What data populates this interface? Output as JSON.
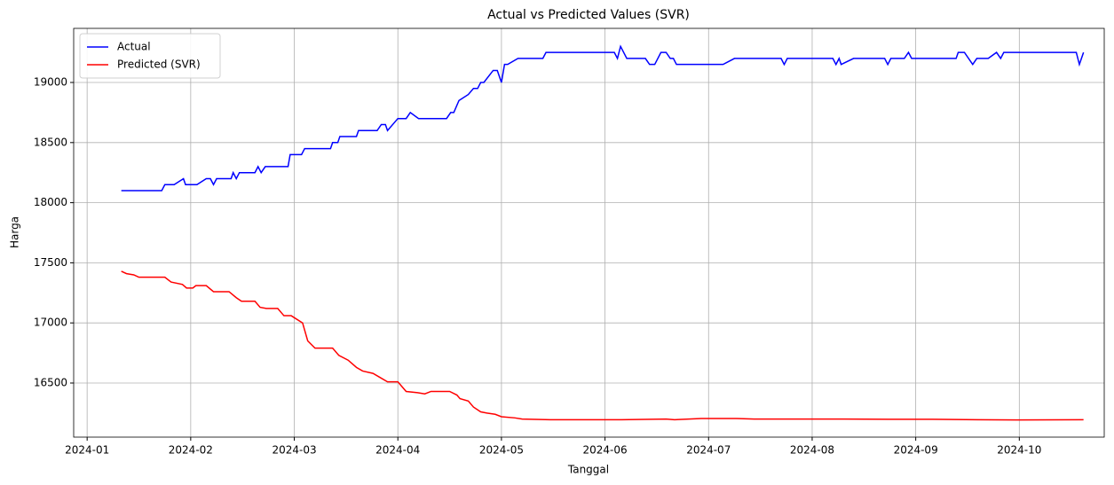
{
  "chart_data": {
    "type": "line",
    "title": "Actual vs Predicted Values (SVR)",
    "xlabel": "Tanggal",
    "ylabel": "Harga",
    "xlim": [
      -0.13,
      9.82
    ],
    "xticks": [
      {
        "value": 0,
        "label": "2024-01"
      },
      {
        "value": 1,
        "label": "2024-02"
      },
      {
        "value": 2,
        "label": "2024-03"
      },
      {
        "value": 3,
        "label": "2024-04"
      },
      {
        "value": 4,
        "label": "2024-05"
      },
      {
        "value": 5,
        "label": "2024-06"
      },
      {
        "value": 6,
        "label": "2024-07"
      },
      {
        "value": 7,
        "label": "2024-08"
      },
      {
        "value": 8,
        "label": "2024-09"
      },
      {
        "value": 9,
        "label": "2024-10"
      }
    ],
    "ylim": [
      16050,
      19450
    ],
    "yticks": [
      16500,
      17000,
      17500,
      18000,
      18500,
      19000
    ],
    "grid": true,
    "legend": "upper left",
    "series": [
      {
        "name": "Actual",
        "color": "#0000ff",
        "x": [
          0.33,
          0.72,
          0.75,
          0.84,
          0.93,
          0.95,
          1.06,
          1.15,
          1.19,
          1.22,
          1.25,
          1.39,
          1.41,
          1.44,
          1.47,
          1.62,
          1.65,
          1.68,
          1.72,
          1.94,
          1.96,
          2.07,
          2.1,
          2.35,
          2.37,
          2.42,
          2.44,
          2.6,
          2.62,
          2.8,
          2.84,
          2.88,
          2.9,
          3.0,
          3.08,
          3.12,
          3.2,
          3.47,
          3.51,
          3.54,
          3.59,
          3.68,
          3.73,
          3.77,
          3.8,
          3.83,
          3.92,
          3.96,
          4.0,
          4.03,
          4.06,
          4.16,
          4.4,
          4.43,
          5.09,
          5.12,
          5.15,
          5.21,
          5.39,
          5.43,
          5.48,
          5.54,
          5.59,
          5.63,
          5.66,
          5.69,
          6.14,
          6.25,
          6.7,
          6.73,
          6.76,
          7.2,
          7.23,
          7.26,
          7.28,
          7.4,
          7.7,
          7.73,
          7.76,
          7.89,
          7.93,
          7.96,
          8.39,
          8.41,
          8.47,
          8.55,
          8.59,
          8.7,
          8.78,
          8.82,
          8.85,
          9.55,
          9.58,
          9.62
        ],
        "values": [
          18100,
          18100,
          18150,
          18150,
          18200,
          18150,
          18150,
          18200,
          18200,
          18150,
          18200,
          18200,
          18250,
          18200,
          18250,
          18250,
          18300,
          18250,
          18300,
          18300,
          18400,
          18400,
          18450,
          18450,
          18500,
          18500,
          18550,
          18550,
          18600,
          18600,
          18650,
          18650,
          18600,
          18700,
          18700,
          18750,
          18700,
          18700,
          18750,
          18750,
          18850,
          18900,
          18950,
          18950,
          19000,
          19000,
          19100,
          19100,
          19000,
          19150,
          19150,
          19200,
          19200,
          19250,
          19250,
          19200,
          19300,
          19200,
          19200,
          19150,
          19150,
          19250,
          19250,
          19200,
          19200,
          19150,
          19150,
          19200,
          19200,
          19150,
          19200,
          19200,
          19150,
          19200,
          19150,
          19200,
          19200,
          19150,
          19200,
          19200,
          19250,
          19200,
          19200,
          19250,
          19250,
          19150,
          19200,
          19200,
          19250,
          19200,
          19250,
          19250,
          19150,
          19250
        ]
      },
      {
        "name": "Predicted (SVR)",
        "color": "#ff0000",
        "x": [
          0.33,
          0.38,
          0.45,
          0.5,
          0.75,
          0.81,
          0.92,
          0.96,
          1.02,
          1.05,
          1.15,
          1.22,
          1.37,
          1.44,
          1.49,
          1.62,
          1.67,
          1.73,
          1.84,
          1.9,
          1.97,
          2.08,
          2.13,
          2.2,
          2.37,
          2.43,
          2.52,
          2.6,
          2.66,
          2.76,
          2.82,
          2.9,
          3.0,
          3.08,
          3.19,
          3.26,
          3.32,
          3.5,
          3.57,
          3.6,
          3.68,
          3.73,
          3.8,
          3.86,
          3.94,
          4.0,
          4.13,
          4.2,
          4.47,
          5.16,
          5.59,
          5.67,
          5.93,
          6.27,
          6.44,
          6.87,
          7.3,
          7.73,
          8.16,
          8.59,
          9.01,
          9.62
        ],
        "values": [
          17430,
          17410,
          17400,
          17380,
          17380,
          17340,
          17320,
          17290,
          17290,
          17310,
          17310,
          17260,
          17260,
          17210,
          17180,
          17180,
          17130,
          17120,
          17120,
          17060,
          17060,
          17000,
          16850,
          16790,
          16790,
          16730,
          16690,
          16630,
          16600,
          16580,
          16550,
          16510,
          16510,
          16430,
          16420,
          16410,
          16430,
          16430,
          16400,
          16370,
          16350,
          16300,
          16260,
          16250,
          16240,
          16220,
          16210,
          16200,
          16195,
          16195,
          16200,
          16195,
          16205,
          16205,
          16200,
          16200,
          16200,
          16198,
          16198,
          16195,
          16193,
          16195
        ]
      }
    ]
  }
}
